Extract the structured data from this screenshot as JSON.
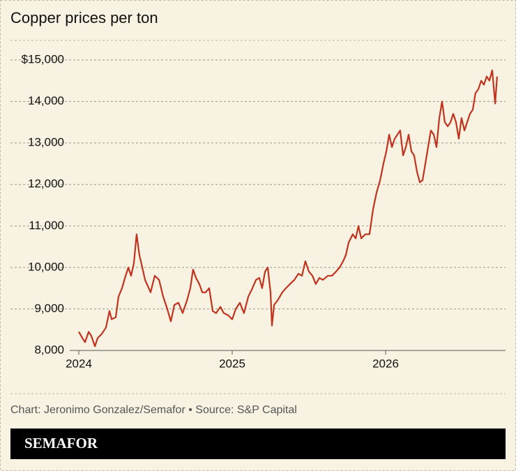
{
  "chart_data": {
    "type": "line",
    "title": "Copper prices per ton",
    "source": "Chart: Jeronimo Gonzalez/Semafor • Source: S&P Capital",
    "logo": "SEMAFOR",
    "xlim": [
      2024,
      2026.75
    ],
    "xticks": [
      2024,
      2025,
      2026
    ],
    "ylim": [
      8000,
      15000
    ],
    "yticks": [
      {
        "value": 8000,
        "label": "8,000"
      },
      {
        "value": 9000,
        "label": "9,000"
      },
      {
        "value": 10000,
        "label": "10,000"
      },
      {
        "value": 11000,
        "label": "11,000"
      },
      {
        "value": 12000,
        "label": "12,000"
      },
      {
        "value": 13000,
        "label": "13,000"
      },
      {
        "value": 14000,
        "label": "14,000"
      },
      {
        "value": 15000,
        "label": "$15,000"
      }
    ],
    "grid": true,
    "series": [
      {
        "color": "#c0341f",
        "x": [
          2024.0,
          2024.023,
          2024.041,
          2024.064,
          2024.082,
          2024.105,
          2024.123,
          2024.15,
          2024.177,
          2024.2,
          2024.214,
          2024.241,
          2024.259,
          2024.282,
          2024.305,
          2024.323,
          2024.341,
          2024.359,
          2024.377,
          2024.395,
          2024.414,
          2024.432,
          2024.45,
          2024.468,
          2024.495,
          2024.523,
          2024.55,
          2024.577,
          2024.6,
          2024.623,
          2024.65,
          2024.677,
          2024.705,
          2024.727,
          2024.745,
          2024.764,
          2024.786,
          2024.805,
          2024.827,
          2024.85,
          2024.873,
          2024.895,
          2024.923,
          2024.945,
          2024.973,
          2025.0,
          2025.023,
          2025.05,
          2025.077,
          2025.105,
          2025.132,
          2025.155,
          2025.177,
          2025.195,
          2025.214,
          2025.232,
          2025.25,
          2025.259,
          2025.273,
          2025.295,
          2025.327,
          2025.35,
          2025.377,
          2025.405,
          2025.432,
          2025.455,
          2025.477,
          2025.5,
          2025.523,
          2025.545,
          2025.568,
          2025.591,
          2025.623,
          2025.65,
          2025.677,
          2025.7,
          2025.723,
          2025.741,
          2025.759,
          2025.786,
          2025.805,
          2025.823,
          2025.841,
          2025.868,
          2025.895,
          2025.918,
          2025.941,
          2025.964,
          2025.986,
          2026.005,
          2026.023,
          2026.041,
          2026.059,
          2026.077,
          2026.095,
          2026.114,
          2026.132,
          2026.15,
          2026.168,
          2026.186,
          2026.205,
          2026.223,
          2026.241,
          2026.259,
          2026.277,
          2026.295,
          2026.314,
          2026.332,
          2026.35,
          2026.368,
          2026.386,
          2026.405,
          2026.423,
          2026.441,
          2026.459,
          2026.477,
          2026.495,
          2026.514,
          2026.532,
          2026.55,
          2026.568,
          2026.586,
          2026.605,
          2026.623,
          2026.641,
          2026.659,
          2026.677,
          2026.695,
          2026.714,
          2026.727
        ],
        "values": [
          8450,
          8300,
          8200,
          8450,
          8350,
          8100,
          8300,
          8400,
          8550,
          8950,
          8750,
          8800,
          9300,
          9500,
          9800,
          10000,
          9800,
          10100,
          10800,
          10300,
          10000,
          9700,
          9550,
          9400,
          9800,
          9700,
          9300,
          9000,
          8700,
          9100,
          9150,
          8900,
          9200,
          9500,
          9950,
          9750,
          9600,
          9400,
          9400,
          9500,
          8950,
          8900,
          9050,
          8900,
          8850,
          8750,
          9000,
          9150,
          8900,
          9300,
          9500,
          9700,
          9750,
          9500,
          9900,
          10000,
          9400,
          8600,
          9100,
          9200,
          9400,
          9500,
          9600,
          9700,
          9850,
          9800,
          10150,
          9900,
          9800,
          9600,
          9750,
          9700,
          9800,
          9800,
          9900,
          10000,
          10150,
          10300,
          10600,
          10800,
          10700,
          11000,
          10700,
          10800,
          10800,
          11400,
          11800,
          12100,
          12500,
          12800,
          13200,
          12900,
          13100,
          13200,
          13300,
          12700,
          12900,
          13200,
          12800,
          12700,
          12300,
          12050,
          12100,
          12500,
          12900,
          13300,
          13200,
          12900,
          13600,
          14000,
          13500,
          13400,
          13500,
          13700,
          13500,
          13100,
          13600,
          13300,
          13500,
          13700,
          13800,
          14200,
          14300,
          14500,
          14400,
          14600,
          14500,
          14750,
          13950,
          14600
        ]
      }
    ]
  }
}
